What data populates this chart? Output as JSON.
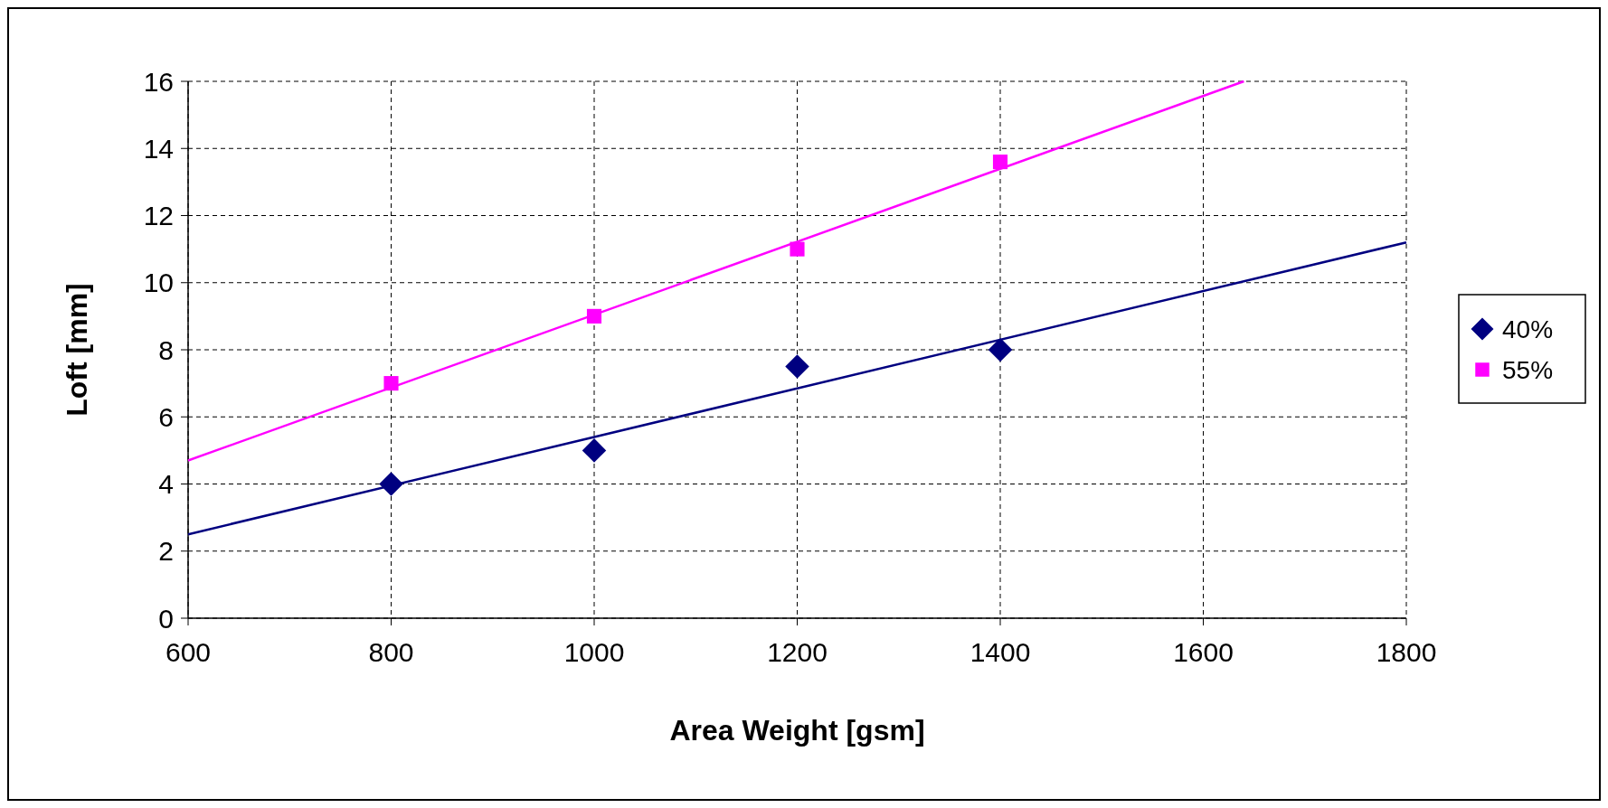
{
  "chart_data": {
    "type": "scatter",
    "xlabel": "Area Weight [gsm]",
    "ylabel": "Loft [mm]",
    "xlim": [
      600,
      1800
    ],
    "xticks": [
      600,
      800,
      1000,
      1200,
      1400,
      1600,
      1800
    ],
    "ylim": [
      0,
      16
    ],
    "yticks": [
      0,
      2,
      4,
      6,
      8,
      10,
      12,
      14,
      16
    ],
    "grid": true,
    "legend": "right",
    "series": [
      {
        "name": "40%",
        "marker": "diamond",
        "color": "#000080",
        "x": [
          800,
          1000,
          1200,
          1400
        ],
        "values": [
          4,
          5,
          7.5,
          8
        ]
      },
      {
        "name": "55%",
        "marker": "square",
        "color": "#ff00ff",
        "x": [
          800,
          1000,
          1200,
          1400
        ],
        "values": [
          7,
          9,
          11,
          13.6
        ]
      },
      {
        "type": "line",
        "color": "#000080",
        "x": [
          600,
          1800
        ],
        "values": [
          2.5,
          11.2
        ]
      },
      {
        "type": "line",
        "color": "#ff00ff",
        "x": [
          600,
          1640
        ],
        "values": [
          4.7,
          16
        ]
      }
    ]
  }
}
